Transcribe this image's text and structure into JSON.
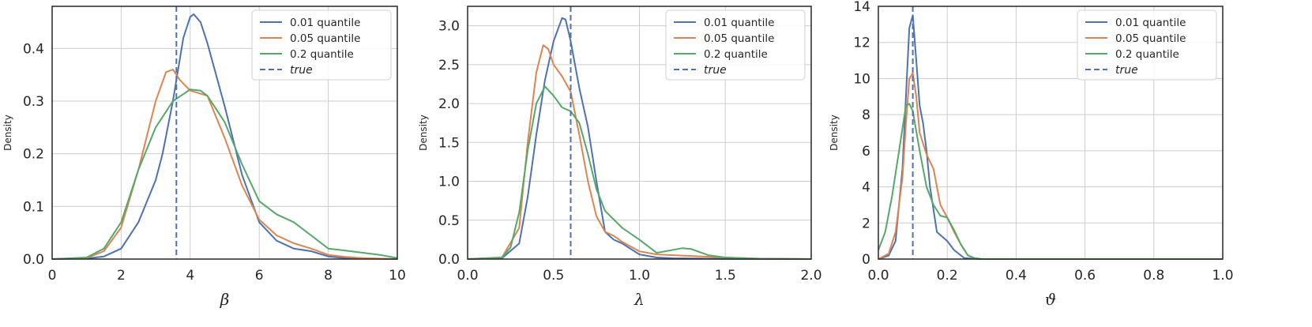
{
  "chart_data": [
    {
      "type": "line",
      "xlabel": "β",
      "ylabel": "Density",
      "xlim": [
        0,
        10
      ],
      "ylim": [
        0,
        0.48
      ],
      "xticks": [
        "0",
        "2",
        "4",
        "6",
        "8",
        "10"
      ],
      "yticks": [
        "0.0",
        "0.1",
        "0.2",
        "0.3",
        "0.4"
      ],
      "grid": true,
      "legend_position": "top-right",
      "true_value": 3.6,
      "true_label": "true",
      "series": [
        {
          "name": "0.01 quantile",
          "color": "#4c72b0",
          "x": [
            0,
            1,
            1.5,
            2,
            2.5,
            3,
            3.2,
            3.5,
            3.8,
            4.0,
            4.1,
            4.3,
            4.5,
            5,
            5.5,
            6,
            6.5,
            7,
            7.5,
            8,
            8.5,
            9,
            10
          ],
          "y": [
            0,
            0.001,
            0.005,
            0.02,
            0.07,
            0.15,
            0.2,
            0.3,
            0.42,
            0.46,
            0.465,
            0.45,
            0.41,
            0.29,
            0.16,
            0.07,
            0.035,
            0.02,
            0.015,
            0.005,
            0.002,
            0.001,
            0
          ]
        },
        {
          "name": "0.05 quantile",
          "color": "#dd8452",
          "x": [
            0,
            1,
            1.5,
            2,
            2.5,
            3,
            3.3,
            3.5,
            3.7,
            4,
            4.5,
            5,
            5.5,
            6,
            6.5,
            7,
            7.5,
            8,
            8.5,
            9,
            10
          ],
          "y": [
            0,
            0.002,
            0.015,
            0.06,
            0.17,
            0.3,
            0.355,
            0.36,
            0.34,
            0.32,
            0.31,
            0.23,
            0.14,
            0.075,
            0.045,
            0.03,
            0.02,
            0.008,
            0.004,
            0.002,
            0
          ]
        },
        {
          "name": "0.2 quantile",
          "color": "#55a868",
          "x": [
            0,
            1,
            1.5,
            2,
            2.5,
            3,
            3.5,
            4,
            4.3,
            4.5,
            5,
            5.5,
            6,
            6.5,
            7,
            7.5,
            8,
            8.5,
            9,
            9.5,
            10
          ],
          "y": [
            0,
            0.003,
            0.02,
            0.07,
            0.17,
            0.25,
            0.3,
            0.322,
            0.32,
            0.31,
            0.26,
            0.18,
            0.11,
            0.085,
            0.07,
            0.045,
            0.02,
            0.016,
            0.012,
            0.008,
            0.002
          ]
        }
      ]
    },
    {
      "type": "line",
      "xlabel": "λ",
      "ylabel": "Density",
      "xlim": [
        0,
        2
      ],
      "ylim": [
        0,
        3.25
      ],
      "xticks": [
        "0.0",
        "0.5",
        "1.0",
        "1.5",
        "2.0"
      ],
      "yticks": [
        "0.0",
        "0.5",
        "1.0",
        "1.5",
        "2.0",
        "2.5",
        "3.0"
      ],
      "grid": true,
      "legend_position": "top-right",
      "true_value": 0.6,
      "true_label": "true",
      "series": [
        {
          "name": "0.01 quantile",
          "color": "#4c72b0",
          "x": [
            0,
            0.2,
            0.3,
            0.35,
            0.4,
            0.45,
            0.5,
            0.55,
            0.57,
            0.6,
            0.65,
            0.7,
            0.75,
            0.8,
            0.85,
            0.9,
            1.0,
            1.1,
            1.2,
            1.5,
            2.0
          ],
          "y": [
            0,
            0.01,
            0.2,
            0.8,
            1.6,
            2.3,
            2.8,
            3.1,
            3.08,
            2.8,
            2.2,
            1.7,
            1.0,
            0.35,
            0.25,
            0.2,
            0.06,
            0.02,
            0.01,
            0.003,
            0
          ]
        },
        {
          "name": "0.05 quantile",
          "color": "#dd8452",
          "x": [
            0,
            0.2,
            0.3,
            0.35,
            0.4,
            0.44,
            0.47,
            0.5,
            0.55,
            0.6,
            0.65,
            0.7,
            0.75,
            0.8,
            0.85,
            0.9,
            1.0,
            1.1,
            1.3,
            1.5,
            1.7,
            2.0
          ],
          "y": [
            0,
            0.02,
            0.4,
            1.5,
            2.4,
            2.75,
            2.7,
            2.5,
            2.35,
            2.15,
            1.6,
            1.0,
            0.55,
            0.35,
            0.3,
            0.22,
            0.1,
            0.06,
            0.04,
            0.02,
            0.005,
            0
          ]
        },
        {
          "name": "0.2 quantile",
          "color": "#55a868",
          "x": [
            0,
            0.2,
            0.25,
            0.3,
            0.35,
            0.4,
            0.45,
            0.5,
            0.55,
            0.6,
            0.65,
            0.7,
            0.75,
            0.8,
            0.9,
            1.0,
            1.1,
            1.2,
            1.25,
            1.3,
            1.4,
            1.5,
            1.7,
            2.0
          ],
          "y": [
            0,
            0.02,
            0.15,
            0.6,
            1.4,
            2.0,
            2.22,
            2.1,
            1.95,
            1.9,
            1.75,
            1.35,
            0.9,
            0.62,
            0.4,
            0.25,
            0.08,
            0.12,
            0.14,
            0.13,
            0.05,
            0.02,
            0.005,
            0
          ]
        }
      ]
    },
    {
      "type": "line",
      "xlabel": "ϑ",
      "ylabel": "Density",
      "xlim": [
        0,
        1
      ],
      "ylim": [
        0,
        14
      ],
      "xticks": [
        "0.0",
        "0.2",
        "0.4",
        "0.6",
        "0.8",
        "1.0"
      ],
      "yticks": [
        "0",
        "2",
        "4",
        "6",
        "8",
        "10",
        "12",
        "14"
      ],
      "grid": true,
      "legend_position": "top-right",
      "true_value": 0.1,
      "true_label": "true",
      "series": [
        {
          "name": "0.01 quantile",
          "color": "#4c72b0",
          "x": [
            0,
            0.03,
            0.05,
            0.07,
            0.08,
            0.09,
            0.1,
            0.11,
            0.12,
            0.13,
            0.14,
            0.15,
            0.17,
            0.2,
            0.22,
            0.25,
            0.3,
            0.5,
            1.0
          ],
          "y": [
            0,
            0.2,
            1.0,
            5.0,
            9.0,
            12.8,
            13.5,
            11.0,
            8.5,
            7.5,
            6.0,
            4.0,
            1.5,
            1.0,
            0.5,
            0.05,
            0,
            0,
            0
          ]
        },
        {
          "name": "0.05 quantile",
          "color": "#dd8452",
          "x": [
            0,
            0.03,
            0.05,
            0.07,
            0.08,
            0.09,
            0.1,
            0.11,
            0.12,
            0.14,
            0.16,
            0.18,
            0.2,
            0.22,
            0.24,
            0.26,
            0.28,
            0.3,
            0.5,
            1.0
          ],
          "y": [
            0,
            0.3,
            1.5,
            4.5,
            7.5,
            10.0,
            10.3,
            9.0,
            7.0,
            5.8,
            5.0,
            3.0,
            2.3,
            1.5,
            0.8,
            0.2,
            0.05,
            0,
            0,
            0
          ]
        },
        {
          "name": "0.2 quantile",
          "color": "#55a868",
          "x": [
            0,
            0.02,
            0.04,
            0.06,
            0.08,
            0.09,
            0.1,
            0.12,
            0.14,
            0.16,
            0.18,
            0.2,
            0.22,
            0.24,
            0.26,
            0.28,
            0.3,
            0.5,
            1.0
          ],
          "y": [
            0.5,
            1.5,
            3.5,
            6.0,
            8.5,
            8.6,
            8.2,
            6.0,
            4.0,
            3.0,
            2.4,
            2.3,
            1.6,
            0.8,
            0.2,
            0.05,
            0,
            0,
            0
          ]
        }
      ]
    }
  ]
}
